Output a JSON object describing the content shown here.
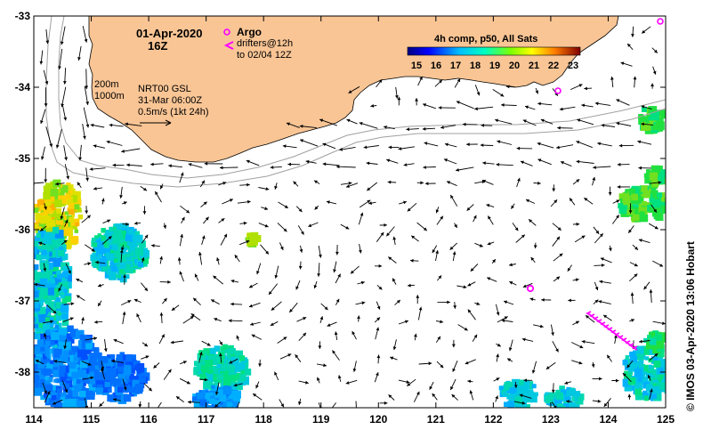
{
  "map": {
    "title_date": "01-Apr-2020",
    "title_time": "16Z",
    "legend_argo": "Argo",
    "legend_drifters_line1": "drifters@12h",
    "legend_drifters_line2": "to 02/04 12Z",
    "colorbar_title": "4h comp, p50, All Sats",
    "colorbar_ticks": [
      "15",
      "16",
      "17",
      "18",
      "19",
      "20",
      "21",
      "22",
      "23"
    ],
    "colorbar_colors": [
      "#00007f",
      "#0000ff",
      "#007fff",
      "#00ffff",
      "#7fff7f",
      "#ffff00",
      "#ff7f00",
      "#ff0000",
      "#7f0000"
    ],
    "isobath_labels": [
      "200m",
      "1000m"
    ],
    "product_line1": "NRT00 GSL",
    "product_line2": "31-Mar 06:00Z",
    "scale_label": "0.5m/s (1kt 24h)",
    "credit": "© IMOS 03-Apr-2020 13:06 Hobart",
    "lon_ticks": [
      "114",
      "115",
      "116",
      "117",
      "118",
      "119",
      "120",
      "121",
      "122",
      "123",
      "124",
      "125"
    ],
    "lat_ticks": [
      "-33",
      "-34",
      "-35",
      "-36",
      "-37",
      "-38"
    ],
    "lon_range": [
      114,
      125
    ],
    "lat_range": [
      -38.5,
      -33
    ],
    "land_color": "#f9c595",
    "argo_color": "#ff00ff"
  }
}
